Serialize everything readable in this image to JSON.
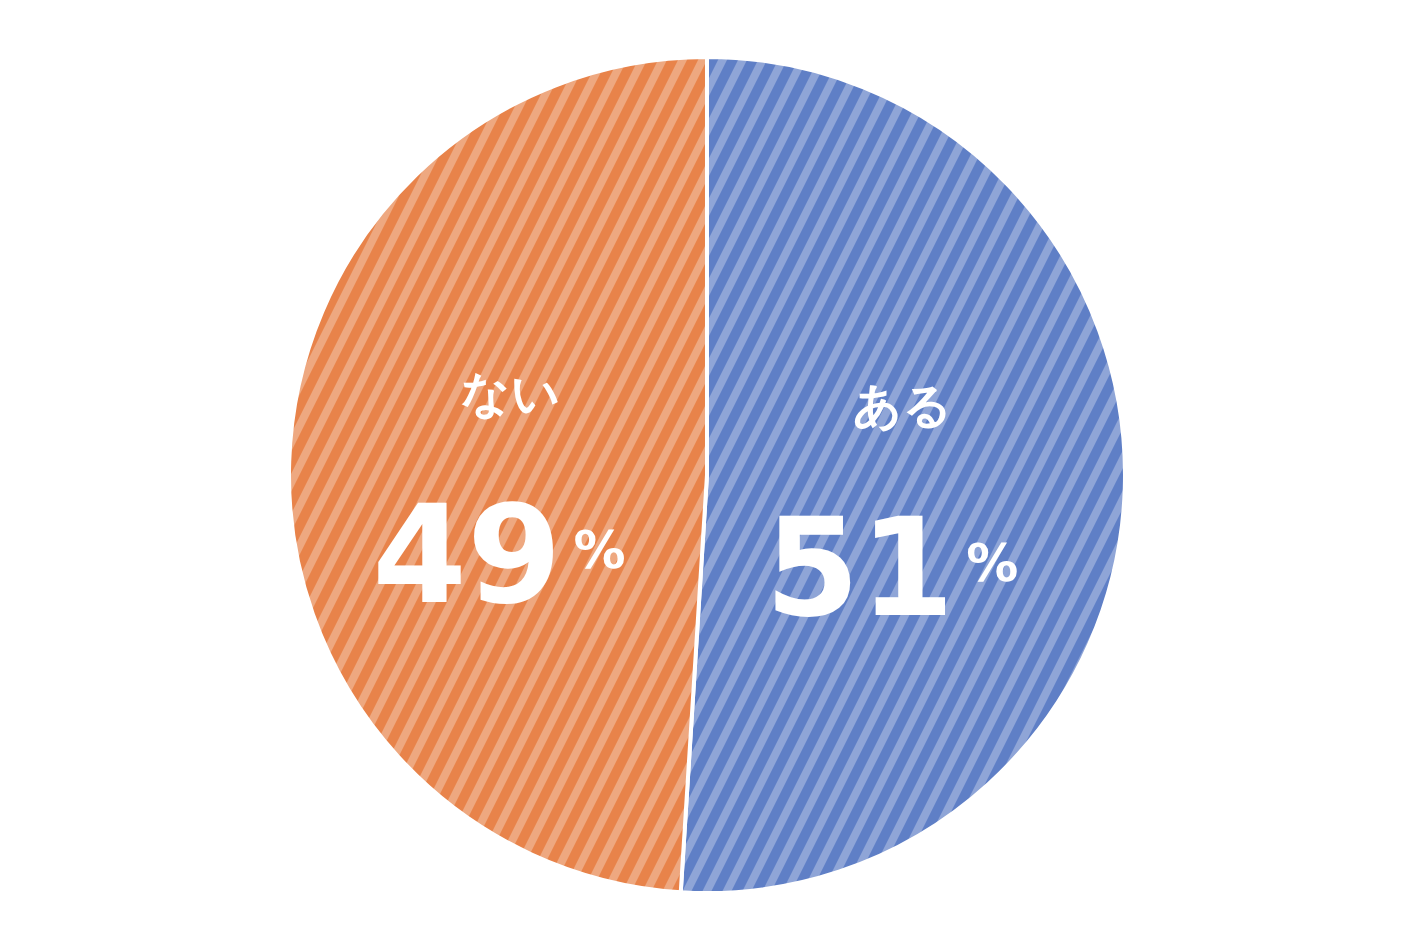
{
  "chart_data": {
    "type": "pie",
    "categories": [
      "ある",
      "ない"
    ],
    "values": [
      51,
      49
    ],
    "colors": [
      "#5f7fc6",
      "#e8834a"
    ],
    "value_labels": [
      "51%",
      "49%"
    ]
  }
}
